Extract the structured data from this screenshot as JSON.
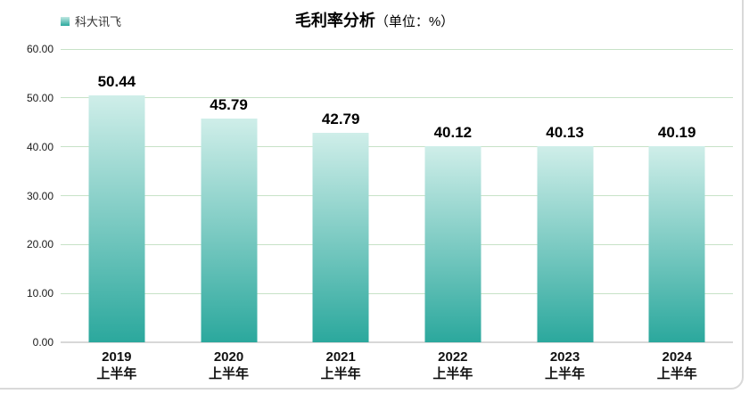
{
  "chart_data": {
    "type": "bar",
    "title": "毛利率分析",
    "title_unit": "（单位：%）",
    "legend_position": "top-left",
    "series": [
      {
        "name": "科大讯飞",
        "values": [
          50.44,
          45.79,
          42.79,
          40.12,
          40.13,
          40.19
        ]
      }
    ],
    "value_labels": [
      "50.44",
      "45.79",
      "42.79",
      "40.12",
      "40.13",
      "40.19"
    ],
    "categories": [
      "2019 上半年",
      "2020 上半年",
      "2021 上半年",
      "2022 上半年",
      "2023 上半年",
      "2024 上半年"
    ],
    "category_lines": [
      [
        "2019",
        "上半年"
      ],
      [
        "2020",
        "上半年"
      ],
      [
        "2021",
        "上半年"
      ],
      [
        "2022",
        "上半年"
      ],
      [
        "2023",
        "上半年"
      ],
      [
        "2024",
        "上半年"
      ]
    ],
    "y_ticks": [
      "60.00",
      "50.00",
      "40.00",
      "30.00",
      "20.00",
      "10.00",
      "0.00"
    ],
    "ylim": [
      0,
      60
    ],
    "grid": true,
    "colors": {
      "bar_gradient_top": "#cfeee9",
      "bar_gradient_bottom": "#2ba89d",
      "gridline": "#c7e2c7",
      "baseline": "#d8d8d8",
      "legend_swatch_top": "#bfe8e2",
      "legend_swatch_bottom": "#2aa89d",
      "title": "#000000",
      "text": "#1a1a1a"
    }
  }
}
